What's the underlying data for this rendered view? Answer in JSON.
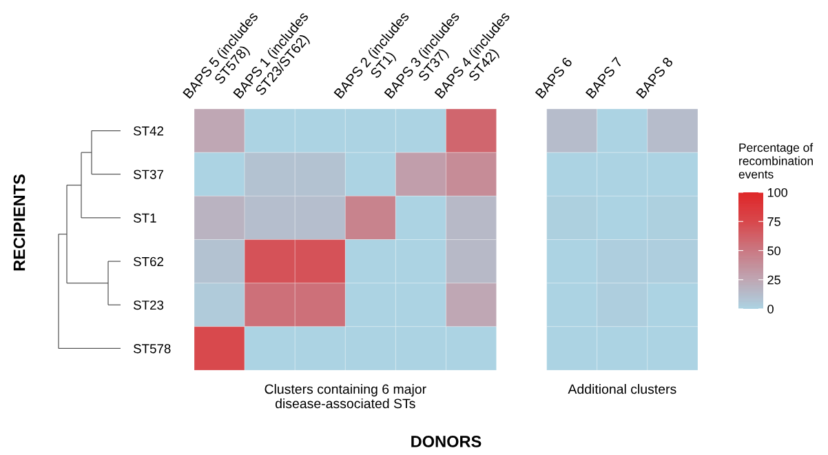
{
  "chart_data": {
    "type": "heatmap",
    "categories": [
      "BAPS 5 (includes\nST578)",
      "BAPS 1 (includes\nST23/ST62)",
      null,
      "BAPS 2 (includes\nST1)",
      "BAPS 3 (includes\nST37)",
      "BAPS 4 (includes\nST42)",
      null,
      "BAPS 6",
      "BAPS 7",
      "BAPS 8"
    ],
    "y_categories": [
      "ST42",
      "ST37",
      "ST1",
      "ST62",
      "ST23",
      "ST578"
    ],
    "cells": [
      [
        25,
        0,
        0,
        0,
        0,
        60,
        null,
        13,
        0,
        13
      ],
      [
        0,
        10,
        10,
        0,
        30,
        40,
        null,
        0,
        0,
        0
      ],
      [
        18,
        12,
        12,
        45,
        0,
        15,
        null,
        2,
        0,
        2
      ],
      [
        10,
        70,
        70,
        0,
        0,
        15,
        null,
        0,
        3,
        3
      ],
      [
        5,
        55,
        55,
        0,
        0,
        25,
        null,
        0,
        3,
        0
      ],
      [
        75,
        0,
        0,
        0,
        0,
        0,
        null,
        0,
        0,
        0
      ]
    ],
    "clim": [
      0,
      100
    ],
    "cticks": [
      0,
      25,
      50,
      75,
      100
    ],
    "clabel": "Percentage of\nrecombination\nevents",
    "xlabel": "DONORS",
    "annotations": [
      "Clusters containing 6 major\ndisease-associated STs",
      "Additional clusters",
      "RECIPIENTS"
    ]
  }
}
